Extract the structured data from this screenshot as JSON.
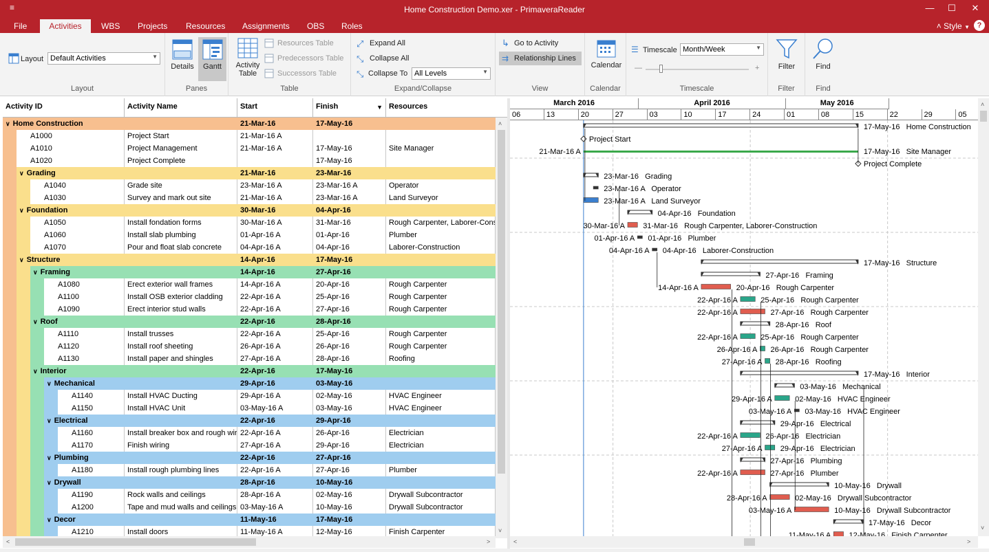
{
  "window": {
    "title": "Home Construction Demo.xer - PrimaveraReader",
    "quick_access": "≡"
  },
  "menu": {
    "tabs": [
      "File",
      "Activities",
      "WBS",
      "Projects",
      "Resources",
      "Assignments",
      "OBS",
      "Roles"
    ],
    "active": "Activities",
    "style": "Style"
  },
  "ribbon": {
    "layout": {
      "label": "Layout",
      "value": "Default Activities",
      "group": "Layout"
    },
    "panes": {
      "details": "Details",
      "gantt": "Gantt",
      "group": "Panes"
    },
    "table": {
      "activity_table": "Activity Table",
      "resources_table": "Resources Table",
      "predecessors_table": "Predecessors Table",
      "successors_table": "Successors Table",
      "group": "Table"
    },
    "expand": {
      "expand_all": "Expand All",
      "collapse_all": "Collapse All",
      "collapse_to": "Collapse To",
      "collapse_value": "All Levels",
      "group": "Expand/Collapse"
    },
    "view": {
      "go_to_activity": "Go to Activity",
      "relationship_lines": "Relationship Lines",
      "group": "View"
    },
    "calendar": {
      "label": "Calendar",
      "group": "Calendar"
    },
    "timescale": {
      "label": "Timescale",
      "value": "Month/Week",
      "group": "Timescale"
    },
    "filter": {
      "label": "Filter",
      "group": "Filter"
    },
    "find": {
      "label": "Find",
      "group": "Find"
    }
  },
  "grid": {
    "columns": [
      "Activity ID",
      "Activity Name",
      "Start",
      "Finish",
      "Resources"
    ],
    "rows": [
      {
        "type": "wbs",
        "level": 0,
        "id": "Home Construction",
        "start": "21-Mar-16",
        "finish": "17-May-16",
        "color": "#f7bf8f"
      },
      {
        "type": "act",
        "level": 1,
        "id": "A1000",
        "name": "Project Start",
        "start": "21-Mar-16 A",
        "finish": "",
        "res": ""
      },
      {
        "type": "act",
        "level": 1,
        "id": "A1010",
        "name": "Project Management",
        "start": "21-Mar-16 A",
        "finish": "17-May-16",
        "res": "Site Manager"
      },
      {
        "type": "act",
        "level": 1,
        "id": "A1020",
        "name": "Project Complete",
        "start": "",
        "finish": "17-May-16",
        "res": ""
      },
      {
        "type": "wbs",
        "level": 1,
        "id": "Grading",
        "start": "21-Mar-16",
        "finish": "23-Mar-16",
        "color": "#fadf8c"
      },
      {
        "type": "act",
        "level": 2,
        "id": "A1040",
        "name": "Grade site",
        "start": "23-Mar-16 A",
        "finish": "23-Mar-16 A",
        "res": "Operator"
      },
      {
        "type": "act",
        "level": 2,
        "id": "A1030",
        "name": "Survey and mark out site",
        "start": "21-Mar-16 A",
        "finish": "23-Mar-16 A",
        "res": "Land Surveyor"
      },
      {
        "type": "wbs",
        "level": 1,
        "id": "Foundation",
        "start": "30-Mar-16",
        "finish": "04-Apr-16",
        "color": "#fadf8c"
      },
      {
        "type": "act",
        "level": 2,
        "id": "A1050",
        "name": "Install fondation forms",
        "start": "30-Mar-16 A",
        "finish": "31-Mar-16",
        "res": "Rough Carpenter, Laborer-Construction"
      },
      {
        "type": "act",
        "level": 2,
        "id": "A1060",
        "name": "Install slab plumbing",
        "start": "01-Apr-16 A",
        "finish": "01-Apr-16",
        "res": "Plumber"
      },
      {
        "type": "act",
        "level": 2,
        "id": "A1070",
        "name": "Pour and float slab concrete",
        "start": "04-Apr-16 A",
        "finish": "04-Apr-16",
        "res": "Laborer-Construction"
      },
      {
        "type": "wbs",
        "level": 1,
        "id": "Structure",
        "start": "14-Apr-16",
        "finish": "17-May-16",
        "color": "#fadf8c"
      },
      {
        "type": "wbs",
        "level": 2,
        "id": "Framing",
        "start": "14-Apr-16",
        "finish": "27-Apr-16",
        "color": "#97e0b3"
      },
      {
        "type": "act",
        "level": 3,
        "id": "A1080",
        "name": "Erect exterior wall frames",
        "start": "14-Apr-16 A",
        "finish": "20-Apr-16",
        "res": "Rough Carpenter"
      },
      {
        "type": "act",
        "level": 3,
        "id": "A1100",
        "name": "Install OSB exterior cladding",
        "start": "22-Apr-16 A",
        "finish": "25-Apr-16",
        "res": "Rough Carpenter"
      },
      {
        "type": "act",
        "level": 3,
        "id": "A1090",
        "name": "Erect interior stud walls",
        "start": "22-Apr-16 A",
        "finish": "27-Apr-16",
        "res": "Rough Carpenter"
      },
      {
        "type": "wbs",
        "level": 2,
        "id": "Roof",
        "start": "22-Apr-16",
        "finish": "28-Apr-16",
        "color": "#97e0b3"
      },
      {
        "type": "act",
        "level": 3,
        "id": "A1110",
        "name": "Install trusses",
        "start": "22-Apr-16 A",
        "finish": "25-Apr-16",
        "res": "Rough Carpenter"
      },
      {
        "type": "act",
        "level": 3,
        "id": "A1120",
        "name": "Install roof sheeting",
        "start": "26-Apr-16 A",
        "finish": "26-Apr-16",
        "res": "Rough Carpenter"
      },
      {
        "type": "act",
        "level": 3,
        "id": "A1130",
        "name": "Install paper and shingles",
        "start": "27-Apr-16 A",
        "finish": "28-Apr-16",
        "res": "Roofing"
      },
      {
        "type": "wbs",
        "level": 2,
        "id": "Interior",
        "start": "22-Apr-16",
        "finish": "17-May-16",
        "color": "#97e0b3"
      },
      {
        "type": "wbs",
        "level": 3,
        "id": "Mechanical",
        "start": "29-Apr-16",
        "finish": "03-May-16",
        "color": "#9fcdef"
      },
      {
        "type": "act",
        "level": 4,
        "id": "A1140",
        "name": "Install HVAC Ducting",
        "start": "29-Apr-16 A",
        "finish": "02-May-16",
        "res": "HVAC Engineer"
      },
      {
        "type": "act",
        "level": 4,
        "id": "A1150",
        "name": "Install HVAC Unit",
        "start": "03-May-16 A",
        "finish": "03-May-16",
        "res": "HVAC Engineer"
      },
      {
        "type": "wbs",
        "level": 3,
        "id": "Electrical",
        "start": "22-Apr-16",
        "finish": "29-Apr-16",
        "color": "#9fcdef"
      },
      {
        "type": "act",
        "level": 4,
        "id": "A1160",
        "name": "Install breaker box and rough wiring",
        "start": "22-Apr-16 A",
        "finish": "26-Apr-16",
        "res": "Electrician"
      },
      {
        "type": "act",
        "level": 4,
        "id": "A1170",
        "name": "Finish wiring",
        "start": "27-Apr-16 A",
        "finish": "29-Apr-16",
        "res": "Electrician"
      },
      {
        "type": "wbs",
        "level": 3,
        "id": "Plumbing",
        "start": "22-Apr-16",
        "finish": "27-Apr-16",
        "color": "#9fcdef"
      },
      {
        "type": "act",
        "level": 4,
        "id": "A1180",
        "name": "Install rough plumbing lines",
        "start": "22-Apr-16 A",
        "finish": "27-Apr-16",
        "res": "Plumber"
      },
      {
        "type": "wbs",
        "level": 3,
        "id": "Drywall",
        "start": "28-Apr-16",
        "finish": "10-May-16",
        "color": "#9fcdef"
      },
      {
        "type": "act",
        "level": 4,
        "id": "A1190",
        "name": "Rock walls and ceilings",
        "start": "28-Apr-16 A",
        "finish": "02-May-16",
        "res": "Drywall Subcontractor"
      },
      {
        "type": "act",
        "level": 4,
        "id": "A1200",
        "name": "Tape and mud walls and ceilings",
        "start": "03-May-16 A",
        "finish": "10-May-16",
        "res": "Drywall Subcontractor"
      },
      {
        "type": "wbs",
        "level": 3,
        "id": "Decor",
        "start": "11-May-16",
        "finish": "17-May-16",
        "color": "#9fcdef"
      },
      {
        "type": "act",
        "level": 4,
        "id": "A1210",
        "name": "Install doors",
        "start": "11-May-16 A",
        "finish": "12-May-16",
        "res": "Finish Carpenter"
      }
    ]
  },
  "gantt": {
    "months": [
      {
        "label": "March 2016",
        "from": 9,
        "to": 31
      },
      {
        "label": "April 2016",
        "from": 31,
        "to": 61
      },
      {
        "label": "May 2016",
        "from": 61,
        "to": 82
      }
    ],
    "weeks": [
      "06",
      "13",
      "20",
      "27",
      "03",
      "10",
      "17",
      "24",
      "01",
      "08",
      "15",
      "22",
      "29",
      "05"
    ],
    "data_date": "21-Mar-16",
    "bars": [
      {
        "kind": "wbs",
        "s": 21,
        "f": 77,
        "lbl_l": "",
        "lbl_r": "17-May-16   Home Construction"
      },
      {
        "kind": "ms",
        "s": 21,
        "f": 21,
        "lbl_l": "",
        "lbl_r": "Project Start"
      },
      {
        "kind": "loe",
        "s": 21,
        "f": 77,
        "lbl_l": "21-Mar-16 A",
        "lbl_r": "17-May-16   Site Manager"
      },
      {
        "kind": "msf",
        "s": 77,
        "f": 77,
        "lbl_l": "",
        "lbl_r": "Project Complete"
      },
      {
        "kind": "wbs",
        "s": 21,
        "f": 24,
        "lbl_l": "",
        "lbl_r": "23-Mar-16   Grading"
      },
      {
        "kind": "actual",
        "s": 23,
        "f": 24,
        "lbl_l": "",
        "lbl_r": "23-Mar-16 A   Operator"
      },
      {
        "kind": "blue",
        "s": 21,
        "f": 24,
        "lbl_l": "",
        "lbl_r": "23-Mar-16 A   Land Surveyor"
      },
      {
        "kind": "wbs",
        "s": 30,
        "f": 35,
        "lbl_l": "",
        "lbl_r": "04-Apr-16   Foundation"
      },
      {
        "kind": "crit",
        "s": 30,
        "f": 32,
        "lbl_l": "30-Mar-16 A",
        "lbl_r": "31-Mar-16   Rough Carpenter, Laborer-Construction"
      },
      {
        "kind": "actual",
        "s": 32,
        "f": 33,
        "lbl_l": "01-Apr-16 A",
        "lbl_r": "01-Apr-16   Plumber"
      },
      {
        "kind": "actual",
        "s": 35,
        "f": 36,
        "lbl_l": "04-Apr-16 A",
        "lbl_r": "04-Apr-16   Laborer-Construction"
      },
      {
        "kind": "wbs",
        "s": 45,
        "f": 77,
        "lbl_l": "",
        "lbl_r": "17-May-16   Structure"
      },
      {
        "kind": "wbs",
        "s": 45,
        "f": 57,
        "lbl_l": "",
        "lbl_r": "27-Apr-16   Framing"
      },
      {
        "kind": "crit",
        "s": 45,
        "f": 51,
        "lbl_l": "14-Apr-16 A",
        "lbl_r": "20-Apr-16   Rough Carpenter"
      },
      {
        "kind": "noncrit",
        "s": 53,
        "f": 56,
        "lbl_l": "22-Apr-16 A",
        "lbl_r": "25-Apr-16   Rough Carpenter"
      },
      {
        "kind": "crit",
        "s": 53,
        "f": 58,
        "lbl_l": "22-Apr-16 A",
        "lbl_r": "27-Apr-16   Rough Carpenter"
      },
      {
        "kind": "wbs",
        "s": 53,
        "f": 59,
        "lbl_l": "",
        "lbl_r": "28-Apr-16   Roof"
      },
      {
        "kind": "noncrit",
        "s": 53,
        "f": 56,
        "lbl_l": "22-Apr-16 A",
        "lbl_r": "25-Apr-16   Rough Carpenter"
      },
      {
        "kind": "noncrit",
        "s": 57,
        "f": 58,
        "lbl_l": "26-Apr-16 A",
        "lbl_r": "26-Apr-16   Rough Carpenter"
      },
      {
        "kind": "noncrit",
        "s": 58,
        "f": 59,
        "lbl_l": "27-Apr-16 A",
        "lbl_r": "28-Apr-16   Roofing"
      },
      {
        "kind": "wbs",
        "s": 53,
        "f": 77,
        "lbl_l": "",
        "lbl_r": "17-May-16   Interior"
      },
      {
        "kind": "wbs",
        "s": 60,
        "f": 64,
        "lbl_l": "",
        "lbl_r": "03-May-16   Mechanical"
      },
      {
        "kind": "noncrit",
        "s": 60,
        "f": 63,
        "lbl_l": "29-Apr-16 A",
        "lbl_r": "02-May-16   HVAC Engineer"
      },
      {
        "kind": "actual",
        "s": 64,
        "f": 65,
        "lbl_l": "03-May-16 A",
        "lbl_r": "03-May-16   HVAC Engineer"
      },
      {
        "kind": "wbs",
        "s": 53,
        "f": 60,
        "lbl_l": "",
        "lbl_r": "29-Apr-16   Electrical"
      },
      {
        "kind": "noncrit",
        "s": 53,
        "f": 57,
        "lbl_l": "22-Apr-16 A",
        "lbl_r": "26-Apr-16   Electrician"
      },
      {
        "kind": "noncrit",
        "s": 58,
        "f": 60,
        "lbl_l": "27-Apr-16 A",
        "lbl_r": "29-Apr-16   Electrician"
      },
      {
        "kind": "wbs",
        "s": 53,
        "f": 58,
        "lbl_l": "",
        "lbl_r": "27-Apr-16   Plumbing"
      },
      {
        "kind": "crit",
        "s": 53,
        "f": 58,
        "lbl_l": "22-Apr-16 A",
        "lbl_r": "27-Apr-16   Plumber"
      },
      {
        "kind": "wbs",
        "s": 59,
        "f": 71,
        "lbl_l": "",
        "lbl_r": "10-May-16   Drywall"
      },
      {
        "kind": "crit",
        "s": 59,
        "f": 63,
        "lbl_l": "28-Apr-16 A",
        "lbl_r": "02-May-16   Drywall Subcontractor"
      },
      {
        "kind": "crit",
        "s": 64,
        "f": 71,
        "lbl_l": "03-May-16 A",
        "lbl_r": "10-May-16   Drywall Subcontractor"
      },
      {
        "kind": "wbs",
        "s": 72,
        "f": 78,
        "lbl_l": "",
        "lbl_r": "17-May-16   Decor"
      },
      {
        "kind": "crit",
        "s": 72,
        "f": 74,
        "lbl_l": "11-May-16 A",
        "lbl_r": "12-May-16   Finish Carpenter"
      }
    ],
    "colors": {
      "critical": "#e05d4f",
      "noncritical": "#2aa68a",
      "actual": "#3a7fcf",
      "loe": "#3aa84a",
      "summary": "#ffffff",
      "data_date": "#3a7fcf"
    }
  }
}
